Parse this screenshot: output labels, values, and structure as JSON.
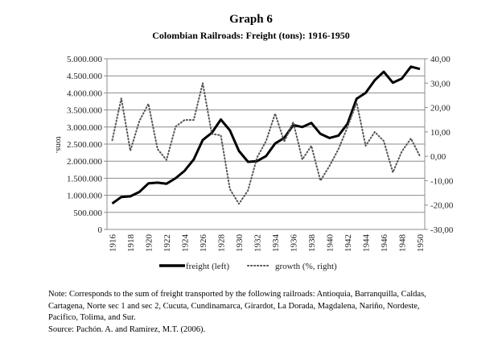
{
  "title": "Graph 6",
  "subtitle": "Colombian Railroads: Freight (tons): 1916-1950",
  "chart_data": {
    "type": "line",
    "title": "Colombian Railroads: Freight (tons): 1916-1950",
    "xlabel": "",
    "ylabel": "tons.",
    "y2label": "",
    "x": [
      1916,
      1917,
      1918,
      1919,
      1920,
      1921,
      1922,
      1923,
      1924,
      1925,
      1926,
      1927,
      1928,
      1929,
      1930,
      1931,
      1932,
      1933,
      1934,
      1935,
      1936,
      1937,
      1938,
      1939,
      1940,
      1941,
      1942,
      1943,
      1944,
      1945,
      1946,
      1947,
      1948,
      1949,
      1950
    ],
    "x_tick_labels": [
      "1916",
      "1918",
      "1920",
      "1922",
      "1924",
      "1926",
      "1928",
      "1930",
      "1932",
      "1934",
      "1936",
      "1938",
      "1940",
      "1942",
      "1944",
      "1946",
      "1948",
      "1950"
    ],
    "ylim": [
      0,
      5000000
    ],
    "y_tick_labels": [
      "0",
      "500.000",
      "1.000.000",
      "1.500.000",
      "2.000.000",
      "2.500.000",
      "3.000.000",
      "3.500.000",
      "4.000.000",
      "4.500.000",
      "5.000.000"
    ],
    "y2lim": [
      -30,
      40
    ],
    "y2_tick_labels": [
      "-30,00",
      "-20,00",
      "-10,00",
      "0,00",
      "10,00",
      "20,00",
      "30,00",
      "40,00"
    ],
    "grid": true,
    "legend_position": "bottom",
    "series": [
      {
        "name": "freight (left)",
        "axis": "left",
        "style": "solid",
        "color": "#000000",
        "values": [
          760000,
          950000,
          970000,
          1100000,
          1350000,
          1370000,
          1340000,
          1500000,
          1720000,
          2050000,
          2620000,
          2830000,
          3220000,
          2900000,
          2300000,
          1980000,
          2000000,
          2150000,
          2520000,
          2680000,
          3060000,
          3000000,
          3120000,
          2800000,
          2680000,
          2750000,
          3100000,
          3830000,
          4000000,
          4370000,
          4620000,
          4300000,
          4420000,
          4770000,
          4700000
        ]
      },
      {
        "name": "growth (%, right)",
        "axis": "right",
        "style": "dotted",
        "color": "#555555",
        "values": [
          6.6,
          23.8,
          2.3,
          14.5,
          21.5,
          3.0,
          -1.5,
          12.2,
          14.9,
          14.9,
          30.0,
          9.2,
          8.6,
          -13.5,
          -19.5,
          -14.0,
          -0.5,
          6.3,
          17.5,
          6.0,
          14.0,
          -1.3,
          4.3,
          -10.0,
          -4.0,
          3.0,
          12.0,
          22.0,
          4.3,
          10.0,
          6.3,
          -6.6,
          2.0,
          7.3,
          0.0
        ]
      }
    ]
  },
  "note_lines": [
    "Note: Corresponds to the sum of freight transported by the following railroads: Antioquia, Barranquilla, Caldas,",
    "Cartagena, Norte sec 1 and sec 2, Cucuta, Cundinamarca, Girardot, La Dorada, Magdalena, Nariño, Nordeste,",
    "Pacifico, Tolima, and Sur.",
    "Source: Pachón. A. and Ramírez, M.T. (2006)."
  ]
}
